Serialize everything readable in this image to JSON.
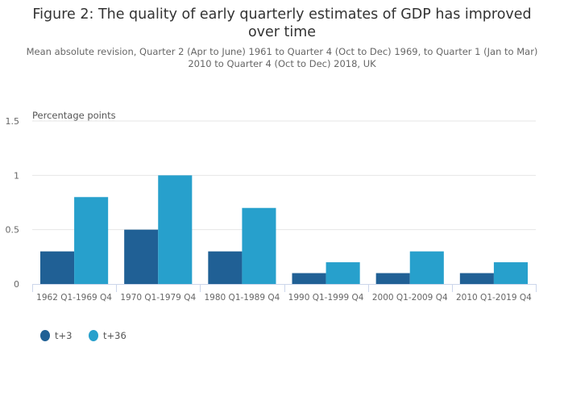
{
  "chart_data": {
    "type": "bar",
    "title": "Figure 2: The quality of early quarterly estimates of GDP has improved over time",
    "subtitle": "Mean absolute revision, Quarter 2 (Apr to June) 1961 to Quarter 4 (Oct to Dec) 1969, to Quarter 1 (Jan to Mar) 2010 to Quarter 4 (Oct to Dec) 2018, UK",
    "ylabel": "Percentage points",
    "xlabel": "",
    "ylim": [
      0,
      1.5
    ],
    "yticks": [
      "0",
      "0.5",
      "1",
      "1.5"
    ],
    "grid": true,
    "legend_position": "bottom-left",
    "categories": [
      "1962 Q1-1969 Q4",
      "1970 Q1-1979 Q4",
      "1980 Q1-1989 Q4",
      "1990 Q1-1999 Q4",
      "2000 Q1-2009 Q4",
      "2010 Q1-2019 Q4"
    ],
    "series": [
      {
        "name": "t+3",
        "color": "#206095",
        "values": [
          0.3,
          0.5,
          0.3,
          0.1,
          0.1,
          0.1
        ]
      },
      {
        "name": "t+36",
        "color": "#27a0cc",
        "values": [
          0.8,
          1.0,
          0.7,
          0.2,
          0.3,
          0.2
        ]
      }
    ]
  }
}
